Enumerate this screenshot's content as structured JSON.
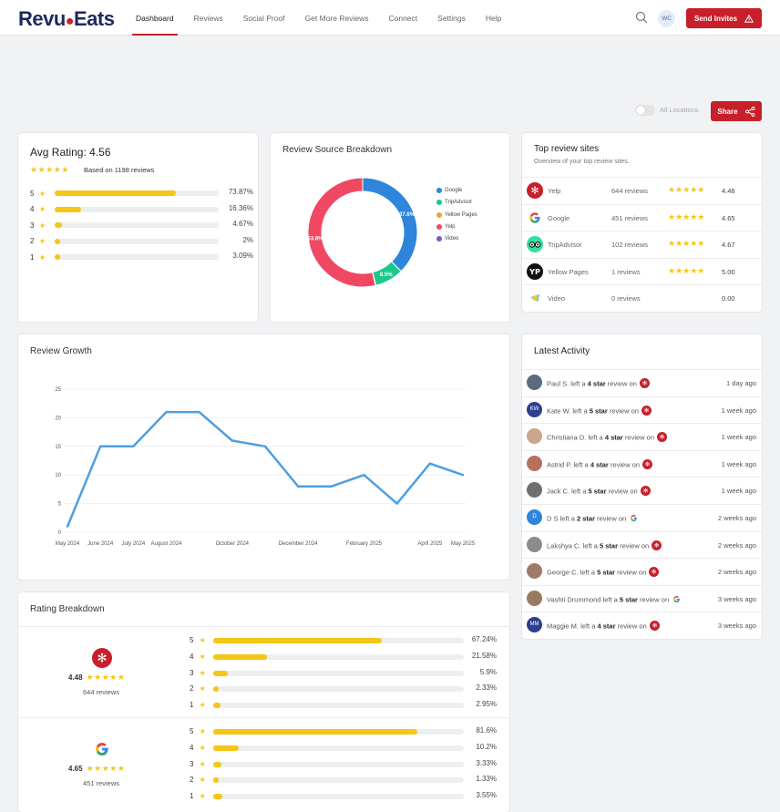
{
  "brand": {
    "name_a": "Revu",
    "name_b": "Eats",
    "accent": "#c8202a"
  },
  "nav": [
    "Dashboard",
    "Reviews",
    "Social Proof",
    "Get More Reviews",
    "Connect",
    "Settings",
    "Help"
  ],
  "header": {
    "avatar": "WC",
    "send_label": "Send Invites"
  },
  "toolbar": {
    "toggle_label": "All Locations",
    "share_label": "Share"
  },
  "avg": {
    "title": "Avg Rating:",
    "value": "4.56",
    "based": "Based on 1198 reviews",
    "rows": [
      {
        "star": "5",
        "pct_label": "73.87%",
        "fraction": 0.7387
      },
      {
        "star": "4",
        "pct_label": "16.36%",
        "fraction": 0.1636
      },
      {
        "star": "3",
        "pct_label": "4.67%",
        "fraction": 0.0467
      },
      {
        "star": "2",
        "pct_label": "2%",
        "fraction": 0.02
      },
      {
        "star": "1",
        "pct_label": "3.09%",
        "fraction": 0.0309
      }
    ]
  },
  "breakdown": {
    "title": "Review Source Breakdown",
    "chart_data": {
      "type": "pie",
      "categories": [
        "Google",
        "TripAdvisor",
        "Yellow Pages",
        "Yelp",
        "Video"
      ],
      "values": [
        37.6,
        8.5,
        0.1,
        53.8,
        0
      ],
      "slice_labels": [
        "37.6%",
        "8.5%",
        "",
        "53.8%",
        ""
      ],
      "colors": [
        "#2f84db",
        "#18c98a",
        "#f3a232",
        "#f04863",
        "#7d57c2"
      ]
    }
  },
  "top_sites": {
    "title": "Top review sites",
    "subtitle": "Overview of your top review sites.",
    "rows": [
      {
        "name": "Yelp",
        "count": "644 reviews",
        "stars": "★★★★★",
        "value": "4.48"
      },
      {
        "name": "Google",
        "count": "451 reviews",
        "stars": "★★★★★",
        "value": "4.65"
      },
      {
        "name": "TripAdvisor",
        "count": "102 reviews",
        "stars": "★★★★★",
        "value": "4.67"
      },
      {
        "name": "Yellow Pages",
        "count": "1 reviews",
        "stars": "★★★★★",
        "value": "5.00"
      },
      {
        "name": "Video",
        "count": "0 reviews",
        "stars": "",
        "value": "0.00"
      }
    ]
  },
  "growth": {
    "title": "Review Growth",
    "chart_data": {
      "type": "line",
      "x": [
        "May 2024",
        "June 2024",
        "July 2024",
        "August 2024",
        "September 2024",
        "October 2024",
        "November 2024",
        "December 2024",
        "January 2025",
        "February 2025",
        "March 2025",
        "April 2025",
        "May 2025"
      ],
      "x_tick_labels": [
        "May 2024",
        "June 2024",
        "July 2024",
        "August 2024",
        "October 2024",
        "December 2024",
        "February 2025",
        "April 2025",
        "May 2025"
      ],
      "series": [
        {
          "values": [
            1,
            15,
            15,
            21,
            21,
            16,
            15,
            8,
            8,
            10,
            5,
            12,
            10
          ]
        }
      ],
      "ylim": [
        0,
        25
      ],
      "yticks": [
        "0",
        "5",
        "10",
        "15",
        "20",
        "25"
      ],
      "color": "#4f9fdf",
      "grid": true
    }
  },
  "activity": {
    "title": "Latest Activity",
    "rows": [
      {
        "name": "Paul S.",
        "mid": "left a",
        "stars": "4 star",
        "tail": "review on",
        "source": "yelp",
        "when": "1 day ago",
        "initials": "",
        "av_color": "#5b6b7c"
      },
      {
        "name": "Kate W.",
        "mid": "left a",
        "stars": "5 star",
        "tail": "review on",
        "source": "yelp",
        "when": "1 week ago",
        "initials": "KW",
        "av_color": "#2d3f8f"
      },
      {
        "name": "Christiana D.",
        "mid": "left a",
        "stars": "4 star",
        "tail": "review on",
        "source": "yelp",
        "when": "1 week ago",
        "initials": "",
        "av_color": "#c9a58a"
      },
      {
        "name": "Astrid P.",
        "mid": "left a",
        "stars": "4 star",
        "tail": "review on",
        "source": "yelp",
        "when": "1 week ago",
        "initials": "",
        "av_color": "#b7715a"
      },
      {
        "name": "Jack C.",
        "mid": "left a",
        "stars": "5 star",
        "tail": "review on",
        "source": "yelp",
        "when": "1 week ago",
        "initials": "",
        "av_color": "#6f6f6f"
      },
      {
        "name": "D S",
        "mid": "left a",
        "stars": "2 star",
        "tail": "review on",
        "source": "google",
        "when": "2 weeks ago",
        "initials": "D",
        "av_color": "#2f84db"
      },
      {
        "name": "Lakshya C.",
        "mid": "left a",
        "stars": "5 star",
        "tail": "review on",
        "source": "yelp",
        "when": "2 weeks ago",
        "initials": "",
        "av_color": "#8b8b8b"
      },
      {
        "name": "George C.",
        "mid": "left a",
        "stars": "5 star",
        "tail": "review on",
        "source": "yelp",
        "when": "2 weeks ago",
        "initials": "",
        "av_color": "#a07a68"
      },
      {
        "name": "Vashti Drummond",
        "mid": "left a",
        "stars": "5 star",
        "tail": "review on",
        "source": "google",
        "when": "3 weeks ago",
        "initials": "",
        "av_color": "#9a7a5e"
      },
      {
        "name": "Maggie M.",
        "mid": "left a",
        "stars": "4 star",
        "tail": "review on",
        "source": "yelp",
        "when": "3 weeks ago",
        "initials": "MM",
        "av_color": "#2d3f8f"
      }
    ]
  },
  "rating_breakdown": {
    "title": "Rating Breakdown",
    "blocks": [
      {
        "source": "yelp",
        "score": "4.48",
        "stars": "★★★★★",
        "count": "644 reviews",
        "rows": [
          {
            "star": "5",
            "pct_label": "67.24%",
            "fraction": 0.6724
          },
          {
            "star": "4",
            "pct_label": "21.58%",
            "fraction": 0.2158
          },
          {
            "star": "3",
            "pct_label": "5.9%",
            "fraction": 0.059
          },
          {
            "star": "2",
            "pct_label": "2.33%",
            "fraction": 0.0233
          },
          {
            "star": "1",
            "pct_label": "2.95%",
            "fraction": 0.0295
          }
        ]
      },
      {
        "source": "google",
        "score": "4.65",
        "stars": "★★★★★",
        "count": "451 reviews",
        "rows": [
          {
            "star": "5",
            "pct_label": "81.6%",
            "fraction": 0.816
          },
          {
            "star": "4",
            "pct_label": "10.2%",
            "fraction": 0.102
          },
          {
            "star": "3",
            "pct_label": "3.33%",
            "fraction": 0.0333
          },
          {
            "star": "2",
            "pct_label": "1.33%",
            "fraction": 0.0133
          },
          {
            "star": "1",
            "pct_label": "3.55%",
            "fraction": 0.0355
          }
        ]
      }
    ]
  }
}
